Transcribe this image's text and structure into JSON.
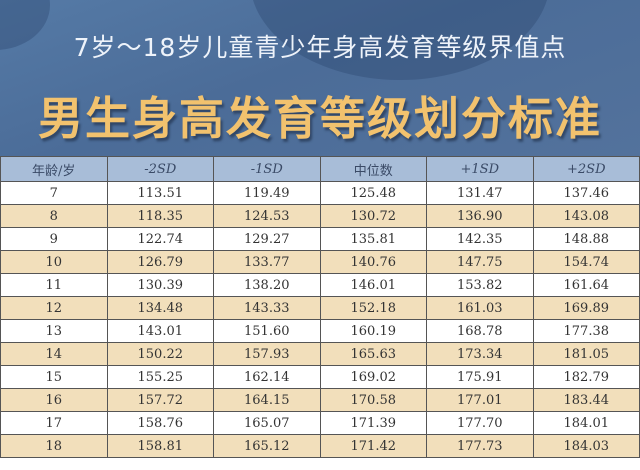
{
  "header": {
    "subtitle": "7岁～18岁儿童青少年身高发育等级界值点",
    "title": "男生身高发育等级划分标准"
  },
  "colors": {
    "banner": "#4f6f99",
    "title": "#f2c26e",
    "header_row": "#a8bdd8",
    "stripe": "#f2dfbb"
  },
  "table": {
    "columns": [
      "年龄/岁",
      "-2SD",
      "-1SD",
      "中位数",
      "+1SD",
      "+2SD"
    ],
    "rows": [
      [
        "7",
        "113.51",
        "119.49",
        "125.48",
        "131.47",
        "137.46"
      ],
      [
        "8",
        "118.35",
        "124.53",
        "130.72",
        "136.90",
        "143.08"
      ],
      [
        "9",
        "122.74",
        "129.27",
        "135.81",
        "142.35",
        "148.88"
      ],
      [
        "10",
        "126.79",
        "133.77",
        "140.76",
        "147.75",
        "154.74"
      ],
      [
        "11",
        "130.39",
        "138.20",
        "146.01",
        "153.82",
        "161.64"
      ],
      [
        "12",
        "134.48",
        "143.33",
        "152.18",
        "161.03",
        "169.89"
      ],
      [
        "13",
        "143.01",
        "151.60",
        "160.19",
        "168.78",
        "177.38"
      ],
      [
        "14",
        "150.22",
        "157.93",
        "165.63",
        "173.34",
        "181.05"
      ],
      [
        "15",
        "155.25",
        "162.14",
        "169.02",
        "175.91",
        "182.79"
      ],
      [
        "16",
        "157.72",
        "164.15",
        "170.58",
        "177.01",
        "183.44"
      ],
      [
        "17",
        "158.76",
        "165.07",
        "171.39",
        "177.70",
        "184.01"
      ],
      [
        "18",
        "158.81",
        "165.12",
        "171.42",
        "177.73",
        "184.03"
      ]
    ]
  }
}
